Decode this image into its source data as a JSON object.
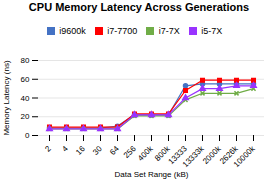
{
  "chart_data": {
    "type": "line",
    "title": "CPU Memory Latency Across Generations",
    "xlabel": "Data Set Range (kB)",
    "ylabel": "Memory Latency (ns)",
    "categories": [
      "2",
      "4",
      "16",
      "30",
      "64",
      "256",
      "400k",
      "800k",
      "13333",
      "13333k",
      "2000k",
      "2626k",
      "10000k"
    ],
    "series": [
      {
        "name": "i9600k",
        "color": "#4472C4",
        "marker": "circle",
        "values": [
          8,
          8,
          8,
          8,
          10,
          22,
          22,
          22,
          53,
          55,
          55,
          55,
          55
        ]
      },
      {
        "name": "i7-7700",
        "color": "#FF0000",
        "marker": "square",
        "values": [
          9,
          9,
          9,
          9,
          9,
          23,
          23,
          23,
          48,
          59,
          59,
          59,
          59
        ]
      },
      {
        "name": "i7-7X",
        "color": "#70AD47",
        "marker": "times",
        "values": [
          7,
          7,
          7,
          7,
          7,
          21,
          21,
          21,
          38,
          45,
          45,
          45,
          50
        ]
      },
      {
        "name": "i5-7X",
        "color": "#9933FF",
        "marker": "triangle",
        "values": [
          7,
          7,
          7,
          7,
          7,
          22,
          22,
          22,
          40,
          50,
          50,
          53,
          53
        ]
      }
    ],
    "ylim": [
      0,
      80
    ],
    "yticks": [
      0,
      20,
      40,
      60,
      80
    ],
    "grid": true,
    "legend": "top"
  }
}
